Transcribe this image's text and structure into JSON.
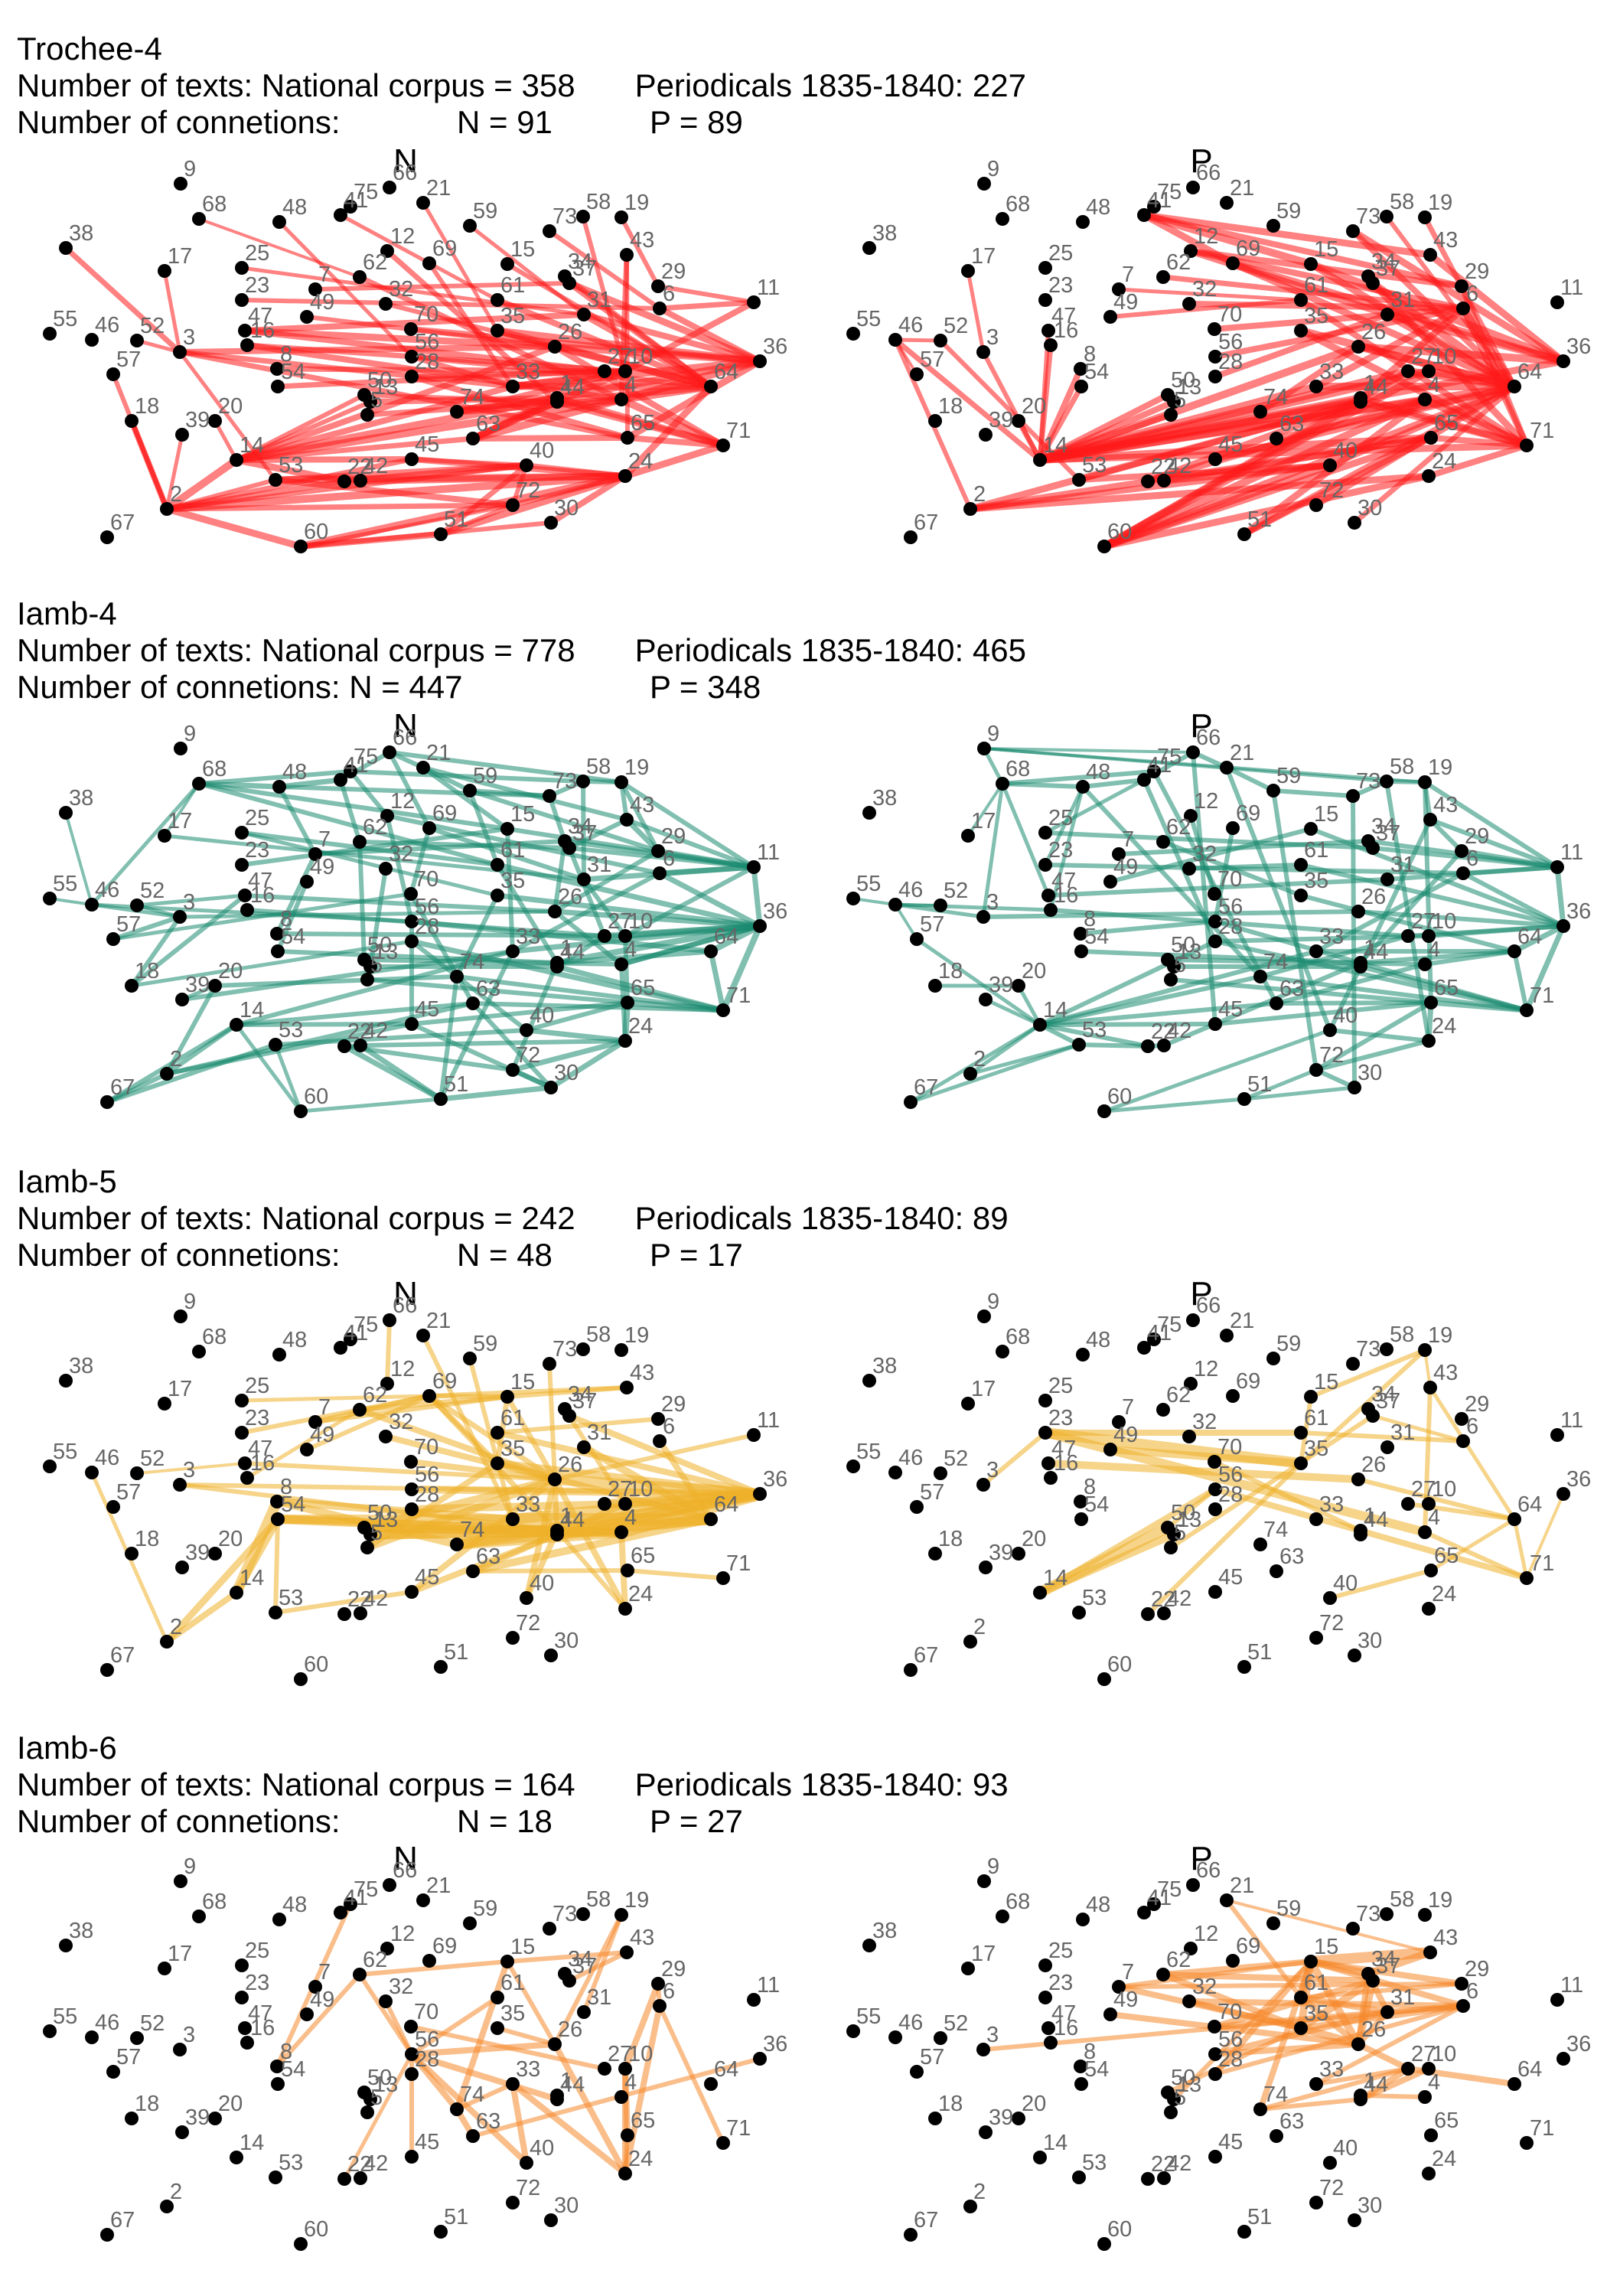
{
  "chart_data": [
    {
      "type": "network",
      "id": "trochee4",
      "meter": "Trochee-4",
      "color": "#ff1a1a",
      "texts_line": {
        "label": "Number of texts: National corpus = ",
        "national": 358,
        "periodicals_label": "Periodicals 1835-1840: ",
        "periodicals": 227
      },
      "connections_line": {
        "label": "Number of connetions:",
        "n_text": "N = 91",
        "p_text": "P = 89"
      },
      "panels": [
        {
          "title": "N",
          "edge_count": 91
        },
        {
          "title": "P",
          "edge_count": 89
        }
      ]
    },
    {
      "type": "network",
      "id": "iamb4",
      "meter": "Iamb-4",
      "color": "#1a8a70",
      "texts_line": {
        "label": "Number of texts: National corpus = ",
        "national": 778,
        "periodicals_label": "Periodicals 1835-1840: ",
        "periodicals": 465
      },
      "connections_line": {
        "label": "Number of connetions: N = 447",
        "n_text": "",
        "p_text": "P = 348"
      },
      "panels": [
        {
          "title": "N",
          "edge_count": 447
        },
        {
          "title": "P",
          "edge_count": 348
        }
      ]
    },
    {
      "type": "network",
      "id": "iamb5",
      "meter": "Iamb-5",
      "color": "#efb02a",
      "texts_line": {
        "label": "Number of texts: National corpus = ",
        "national": 242,
        "periodicals_label": "Periodicals 1835-1840: ",
        "periodicals": 89
      },
      "connections_line": {
        "label": "Number of connetions:",
        "n_text": "N = 48",
        "p_text": "P = 17"
      },
      "panels": [
        {
          "title": "N",
          "edge_count": 48
        },
        {
          "title": "P",
          "edge_count": 17
        }
      ]
    },
    {
      "type": "network",
      "id": "iamb6",
      "meter": "Iamb-6",
      "color": "#f6892c",
      "texts_line": {
        "label": "Number of texts: National corpus = ",
        "national": 164,
        "periodicals_label": "Periodicals 1835-1840: ",
        "periodicals": 93
      },
      "connections_line": {
        "label": "Number of connetions:",
        "n_text": "N = 18",
        "p_text": "P = 27"
      },
      "panels": [
        {
          "title": "N",
          "edge_count": 18
        },
        {
          "title": "P",
          "edge_count": 27
        }
      ]
    }
  ],
  "node_labels": [
    "1",
    "2",
    "3",
    "4",
    "5",
    "6",
    "7",
    "8",
    "9",
    "10",
    "11",
    "12",
    "13",
    "14",
    "15",
    "16",
    "17",
    "18",
    "19",
    "20",
    "21",
    "22",
    "23",
    "24",
    "25",
    "26",
    "27",
    "28",
    "29",
    "30",
    "31",
    "32",
    "33",
    "34",
    "35",
    "36",
    "37",
    "38",
    "39",
    "40",
    "41",
    "42",
    "43",
    "44",
    "45",
    "46",
    "47",
    "48",
    "49",
    "50",
    "51",
    "52",
    "53",
    "54",
    "55",
    "56",
    "57",
    "58",
    "59",
    "60",
    "61",
    "62",
    "63",
    "64",
    "65",
    "66",
    "67",
    "68",
    "69",
    "70",
    "71",
    "72",
    "73",
    "74",
    "75"
  ]
}
